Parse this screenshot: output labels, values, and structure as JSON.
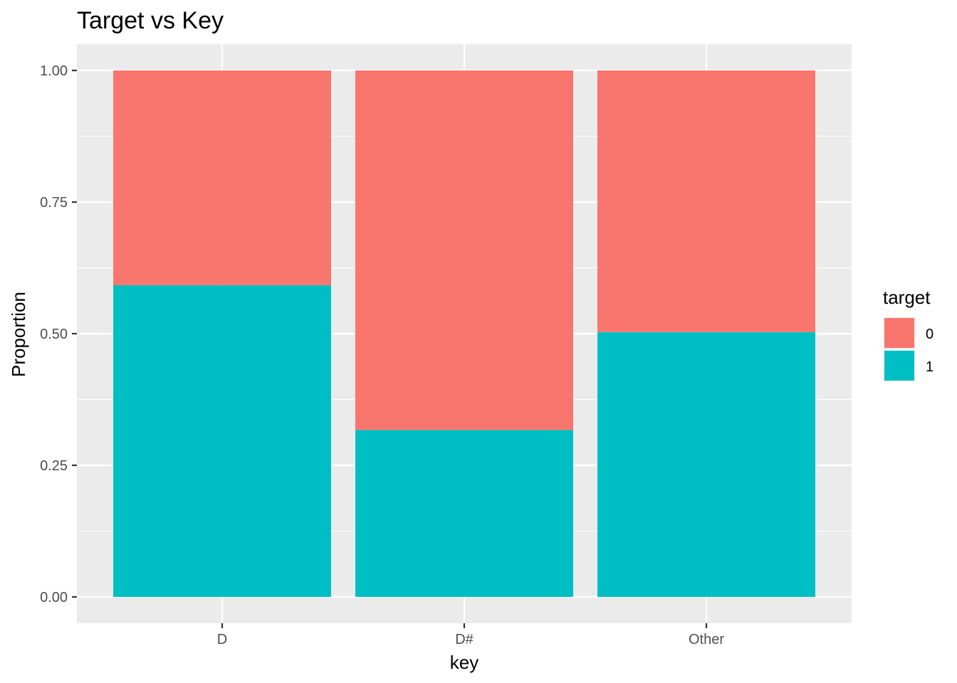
{
  "chart_data": {
    "type": "bar",
    "stacked": true,
    "normalized": true,
    "title": "Target vs Key",
    "xlabel": "key",
    "ylabel": "Proportion",
    "categories": [
      "D",
      "D#",
      "Other"
    ],
    "series": [
      {
        "name": "0",
        "color": "#F8766D",
        "values": [
          0.408,
          0.683,
          0.497
        ]
      },
      {
        "name": "1",
        "color": "#00BFC4",
        "values": [
          0.592,
          0.317,
          0.503
        ]
      }
    ],
    "stack_order_bottom_to_top": [
      "1",
      "0"
    ],
    "ylim": [
      0,
      1.0
    ],
    "yticks": [
      0.0,
      0.25,
      0.5,
      0.75,
      1.0
    ],
    "ytick_labels": [
      "0.00",
      "0.25",
      "0.50",
      "0.75",
      "1.00"
    ],
    "grid": true,
    "panel_background": "#EBEBEB",
    "legend": {
      "title": "target",
      "position": "right",
      "items": [
        "0",
        "1"
      ]
    }
  }
}
